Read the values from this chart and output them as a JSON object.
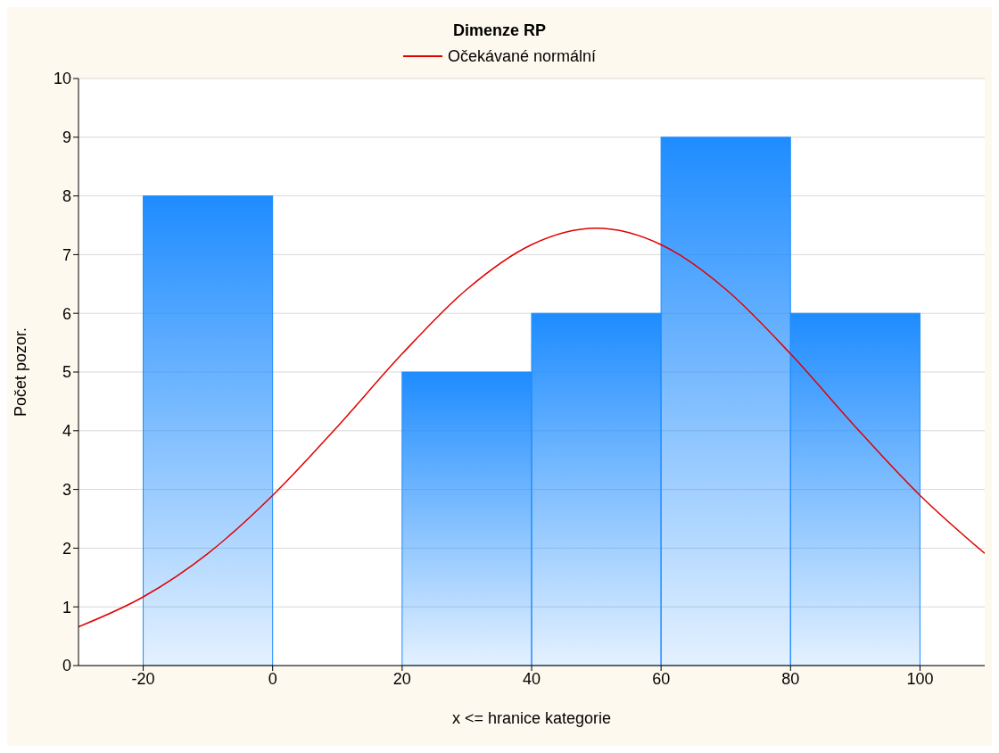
{
  "chart_data": {
    "type": "histogram",
    "title": "Dimenze RP",
    "xlabel": "x <= hranice kategorie",
    "ylabel": "Počet pozor.",
    "bins": [
      -20,
      0,
      20,
      40,
      60,
      80,
      100
    ],
    "values": [
      8,
      0,
      5,
      6,
      9,
      6
    ],
    "color": "#1e8cff",
    "series": [
      {
        "type": "line",
        "name": "Očekávané normální",
        "color": "#e00000",
        "x": [
          -30,
          -20,
          -10,
          0,
          10,
          20,
          30,
          40,
          50,
          60,
          70,
          80,
          90,
          100,
          110
        ],
        "values": [
          0.66,
          1.17,
          1.91,
          2.9,
          4.07,
          5.31,
          6.41,
          7.17,
          7.45,
          7.17,
          6.41,
          5.31,
          4.07,
          2.9,
          1.91
        ]
      }
    ],
    "xlim": [
      -30,
      110
    ],
    "xticks": [
      -20,
      0,
      20,
      40,
      60,
      80,
      100
    ],
    "ylim": [
      0,
      10
    ],
    "yticks": [
      0,
      1,
      2,
      3,
      4,
      5,
      6,
      7,
      8,
      9,
      10
    ],
    "grid": "y",
    "legend": "top",
    "marker": "none",
    "line_style": "solid"
  }
}
